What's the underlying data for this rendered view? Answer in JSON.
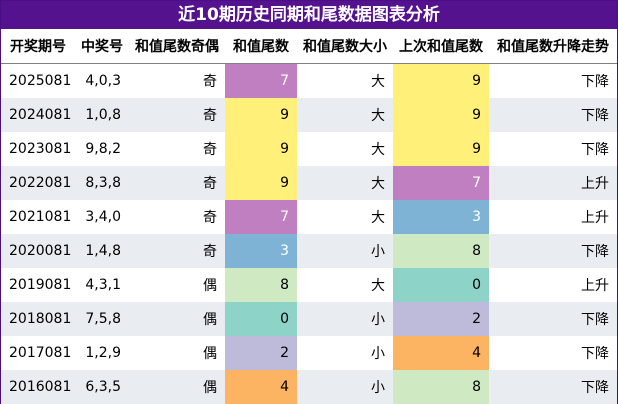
{
  "title": "近10期历史同期和尾数据图表分析",
  "headers": [
    "开奖期号",
    "中奖号",
    "和值尾数奇偶",
    "和值尾数",
    "和值尾数大小",
    "上次和值尾数",
    "和值尾数升降走势"
  ],
  "colors": {
    "purple": "#c07fc0",
    "yellow": "#fff07a",
    "blue": "#7fb3d5",
    "green": "#cfe9c3",
    "teal": "#8dd3c7",
    "lavender": "#bebada",
    "orange": "#fdb462"
  },
  "rows": [
    {
      "issue": "2025081",
      "numbers": "4,0,3",
      "parity": "奇",
      "tail": "7",
      "tail_color": "#c07fc0",
      "tail_text_color": "#ffffff",
      "size": "大",
      "prev": "9",
      "prev_color": "#fff07a",
      "prev_text_color": "#000000",
      "trend": "下降"
    },
    {
      "issue": "2024081",
      "numbers": "1,0,8",
      "parity": "奇",
      "tail": "9",
      "tail_color": "#fff07a",
      "tail_text_color": "#000000",
      "size": "大",
      "prev": "9",
      "prev_color": "#fff07a",
      "prev_text_color": "#000000",
      "trend": "下降"
    },
    {
      "issue": "2023081",
      "numbers": "9,8,2",
      "parity": "奇",
      "tail": "9",
      "tail_color": "#fff07a",
      "tail_text_color": "#000000",
      "size": "大",
      "prev": "9",
      "prev_color": "#fff07a",
      "prev_text_color": "#000000",
      "trend": "下降"
    },
    {
      "issue": "2022081",
      "numbers": "8,3,8",
      "parity": "奇",
      "tail": "9",
      "tail_color": "#fff07a",
      "tail_text_color": "#000000",
      "size": "大",
      "prev": "7",
      "prev_color": "#c07fc0",
      "prev_text_color": "#ffffff",
      "trend": "上升"
    },
    {
      "issue": "2021081",
      "numbers": "3,4,0",
      "parity": "奇",
      "tail": "7",
      "tail_color": "#c07fc0",
      "tail_text_color": "#ffffff",
      "size": "大",
      "prev": "3",
      "prev_color": "#7fb3d5",
      "prev_text_color": "#ffffff",
      "trend": "上升"
    },
    {
      "issue": "2020081",
      "numbers": "1,4,8",
      "parity": "奇",
      "tail": "3",
      "tail_color": "#7fb3d5",
      "tail_text_color": "#ffffff",
      "size": "小",
      "prev": "8",
      "prev_color": "#cfe9c3",
      "prev_text_color": "#000000",
      "trend": "下降"
    },
    {
      "issue": "2019081",
      "numbers": "4,3,1",
      "parity": "偶",
      "tail": "8",
      "tail_color": "#cfe9c3",
      "tail_text_color": "#000000",
      "size": "大",
      "prev": "0",
      "prev_color": "#8dd3c7",
      "prev_text_color": "#000000",
      "trend": "上升"
    },
    {
      "issue": "2018081",
      "numbers": "7,5,8",
      "parity": "偶",
      "tail": "0",
      "tail_color": "#8dd3c7",
      "tail_text_color": "#000000",
      "size": "小",
      "prev": "2",
      "prev_color": "#bebada",
      "prev_text_color": "#000000",
      "trend": "下降"
    },
    {
      "issue": "2017081",
      "numbers": "1,2,9",
      "parity": "偶",
      "tail": "2",
      "tail_color": "#bebada",
      "tail_text_color": "#000000",
      "size": "小",
      "prev": "4",
      "prev_color": "#fdb462",
      "prev_text_color": "#000000",
      "trend": "下降"
    },
    {
      "issue": "2016081",
      "numbers": "6,3,5",
      "parity": "偶",
      "tail": "4",
      "tail_color": "#fdb462",
      "tail_text_color": "#000000",
      "size": "小",
      "prev": "8",
      "prev_color": "#cfe9c3",
      "prev_text_color": "#000000",
      "trend": "下降"
    }
  ]
}
